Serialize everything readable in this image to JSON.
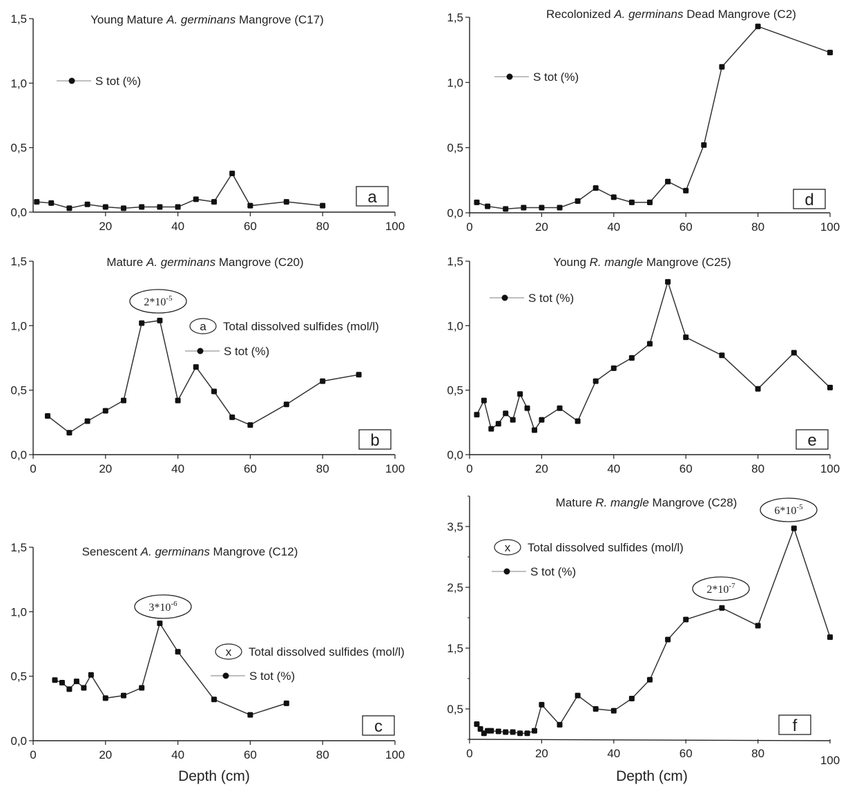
{
  "chart_data": [
    {
      "id": "a",
      "type": "line",
      "title_parts": [
        "Young Mature ",
        "A. germinans",
        " Mangrove (C17)"
      ],
      "series": [
        {
          "name": "S tot (%)",
          "x": [
            1,
            5,
            10,
            15,
            20,
            25,
            30,
            35,
            40,
            45,
            50,
            55,
            60,
            70,
            80
          ],
          "values": [
            0.08,
            0.07,
            0.03,
            0.06,
            0.04,
            0.03,
            0.04,
            0.04,
            0.04,
            0.1,
            0.08,
            0.3,
            0.05,
            0.08,
            0.05
          ]
        }
      ],
      "xlim": [
        0,
        100
      ],
      "ylim": [
        0,
        1.5
      ],
      "xticks": [
        "20",
        "40",
        "60",
        "80",
        "100"
      ],
      "yticks": [
        "0,0",
        "0,5",
        "1,0",
        "1,5"
      ],
      "legend": [
        {
          "marker": "line-dot",
          "text": "S tot (%)"
        }
      ],
      "annotations": [],
      "panel_label": "a",
      "xlabel": ""
    },
    {
      "id": "b",
      "type": "line",
      "title_parts": [
        "Mature ",
        "A. germinans",
        " Mangrove (C20)"
      ],
      "series": [
        {
          "name": "S tot (%)",
          "x": [
            4,
            10,
            15,
            20,
            25,
            30,
            35,
            40,
            45,
            50,
            55,
            60,
            70,
            80,
            90
          ],
          "values": [
            0.3,
            0.17,
            0.26,
            0.34,
            0.42,
            1.02,
            1.04,
            0.42,
            0.68,
            0.49,
            0.29,
            0.23,
            0.39,
            0.57,
            0.62
          ]
        }
      ],
      "xlim": [
        0,
        100
      ],
      "ylim": [
        0,
        1.5
      ],
      "xticks": [
        "0",
        "20",
        "40",
        "60",
        "80",
        "100"
      ],
      "yticks": [
        "0,0",
        "0,5",
        "1,0",
        "1,5"
      ],
      "legend": [
        {
          "marker": "ellipse",
          "symbol": "a",
          "text": "Total dissolved sulfides (mol/l)"
        },
        {
          "marker": "line-dot",
          "text": "S tot (%)"
        }
      ],
      "annotations": [
        {
          "mantissa": "2*10",
          "exponent": "-5",
          "x": 33,
          "y": 1.04
        }
      ],
      "panel_label": "b",
      "xlabel": ""
    },
    {
      "id": "c",
      "type": "line",
      "title_parts": [
        "Senescent ",
        "A. germinans",
        " Mangrove (C12)"
      ],
      "series": [
        {
          "name": "S tot (%)",
          "x": [
            6,
            8,
            10,
            12,
            14,
            16,
            20,
            25,
            30,
            35,
            40,
            50,
            60,
            70
          ],
          "values": [
            0.47,
            0.45,
            0.4,
            0.46,
            0.41,
            0.51,
            0.33,
            0.35,
            0.41,
            0.91,
            0.69,
            0.32,
            0.2,
            0.29
          ]
        }
      ],
      "xlim": [
        0,
        100
      ],
      "ylim": [
        0,
        1.5
      ],
      "xticks": [
        "0",
        "20",
        "40",
        "60",
        "80",
        "100"
      ],
      "yticks": [
        "0,0",
        "0,5",
        "1,0",
        "1,5"
      ],
      "legend": [
        {
          "marker": "ellipse",
          "symbol": "x",
          "text": "Total dissolved sulfides (mol/l)"
        },
        {
          "marker": "line-dot",
          "text": "S tot (%)"
        }
      ],
      "annotations": [
        {
          "mantissa": "3*10",
          "exponent": "-6",
          "x": 35,
          "y": 0.91
        }
      ],
      "panel_label": "c",
      "xlabel": "Depth (cm)"
    },
    {
      "id": "d",
      "type": "line",
      "title_parts": [
        "Recolonized ",
        "A. germinans",
        " Dead Mangrove (C2)"
      ],
      "series": [
        {
          "name": "S tot (%)",
          "x": [
            2,
            5,
            10,
            15,
            20,
            25,
            30,
            35,
            40,
            45,
            50,
            55,
            60,
            65,
            70,
            80,
            100
          ],
          "values": [
            0.08,
            0.05,
            0.03,
            0.04,
            0.04,
            0.04,
            0.09,
            0.19,
            0.12,
            0.08,
            0.08,
            0.24,
            0.17,
            0.52,
            1.12,
            1.43,
            1.23
          ]
        }
      ],
      "xlim": [
        0,
        100
      ],
      "ylim": [
        0,
        1.5
      ],
      "xticks": [
        "0",
        "20",
        "40",
        "60",
        "80",
        "100"
      ],
      "yticks": [
        "0,0",
        "0,5",
        "1,0",
        "1,5"
      ],
      "legend": [
        {
          "marker": "line-dot",
          "text": "S tot (%)"
        }
      ],
      "annotations": [],
      "panel_label": "d",
      "xlabel": ""
    },
    {
      "id": "e",
      "type": "line",
      "title_parts": [
        "Young ",
        "R. mangle",
        " Mangrove (C25)"
      ],
      "series": [
        {
          "name": "S tot (%)",
          "x": [
            2,
            4,
            6,
            8,
            10,
            12,
            14,
            16,
            18,
            20,
            25,
            30,
            35,
            40,
            45,
            50,
            55,
            60,
            70,
            80,
            90,
            100
          ],
          "values": [
            0.31,
            0.42,
            0.2,
            0.24,
            0.32,
            0.27,
            0.47,
            0.36,
            0.19,
            0.27,
            0.36,
            0.26,
            0.57,
            0.67,
            0.75,
            0.86,
            1.34,
            0.91,
            0.77,
            0.51,
            0.79,
            0.52
          ]
        }
      ],
      "xlim": [
        0,
        100
      ],
      "ylim": [
        0,
        1.5
      ],
      "xticks": [
        "0",
        "20",
        "40",
        "60",
        "80",
        "100"
      ],
      "yticks": [
        "0,0",
        "0,5",
        "1,0",
        "1,5"
      ],
      "legend": [
        {
          "marker": "line-dot",
          "text": "S tot (%)"
        }
      ],
      "annotations": [],
      "panel_label": "e",
      "xlabel": ""
    },
    {
      "id": "f",
      "type": "line",
      "title_parts": [
        "Mature ",
        "R. mangle",
        " Mangrove (C28)"
      ],
      "series": [
        {
          "name": "S tot (%)",
          "x": [
            2,
            3,
            4,
            5,
            6,
            8,
            10,
            12,
            14,
            16,
            18,
            20,
            25,
            30,
            35,
            40,
            45,
            50,
            55,
            60,
            70,
            80,
            90,
            100
          ],
          "values": [
            0.25,
            0.17,
            0.1,
            0.14,
            0.14,
            0.13,
            0.12,
            0.12,
            0.1,
            0.1,
            0.14,
            0.57,
            0.24,
            0.72,
            0.5,
            0.47,
            0.67,
            0.98,
            1.64,
            1.97,
            2.16,
            1.87,
            3.47,
            1.68
          ]
        }
      ],
      "xlim": [
        0,
        100
      ],
      "ylim": [
        0,
        4
      ],
      "xticks": [
        "0",
        "20",
        "40",
        "60",
        "80",
        "100"
      ],
      "yticks": [
        "0,5",
        "1,5",
        "2,5",
        "3,5"
      ],
      "legend": [
        {
          "marker": "ellipse",
          "symbol": "x",
          "text": "Total dissolved sulfides (mol/l)"
        },
        {
          "marker": "line-dot",
          "text": "S tot (%)"
        }
      ],
      "annotations": [
        {
          "mantissa": "2*10",
          "exponent": "-7",
          "x": 70,
          "y": 2.16
        },
        {
          "mantissa": "6*10",
          "exponent": "-5",
          "x": 90,
          "y": 3.47
        }
      ],
      "panel_label": "f",
      "xlabel": "Depth (cm)"
    }
  ],
  "colors": {
    "line": "#333333",
    "marker": "#111111",
    "axis": "#222222",
    "legend_line": "#999999"
  }
}
